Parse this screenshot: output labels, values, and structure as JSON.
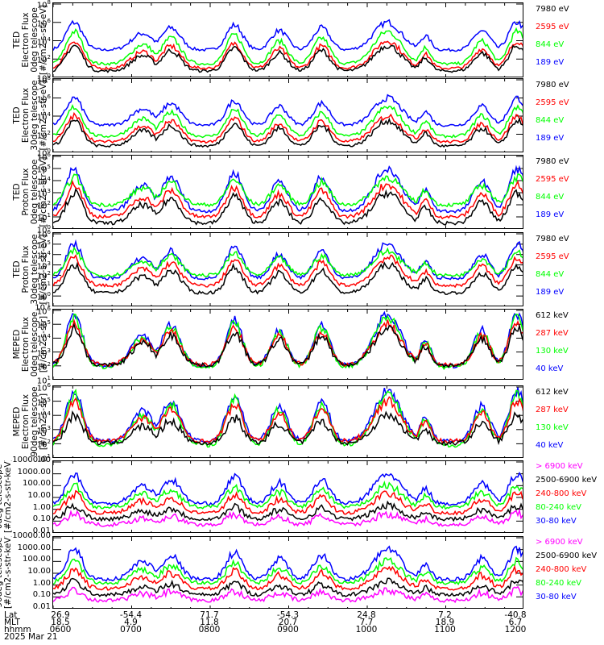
{
  "colors": {
    "black": "#000000",
    "red": "#ff0000",
    "green": "#00ff00",
    "blue": "#0000ff",
    "magenta": "#ff00ff"
  },
  "chart_data": [
    {
      "type": "line",
      "title": "",
      "ylabel": "TED\nElectron Flux\n0deg telescope\n[#/cm2-s-str-eV]",
      "yscale": "log",
      "ylim": [
        1,
        100000000
      ],
      "yticks": [
        {
          "base": "10",
          "exp": "8"
        },
        {
          "base": "10",
          "exp": "6"
        },
        {
          "base": "10",
          "exp": "4"
        },
        {
          "base": "10",
          "exp": "2"
        },
        {
          "base": "10",
          "exp": "0"
        }
      ],
      "legend": [
        {
          "label": "7980 eV",
          "color": "#000000"
        },
        {
          "label": "2595 eV",
          "color": "#ff0000"
        },
        {
          "label": "844 eV",
          "color": "#00ff00"
        },
        {
          "label": "189 eV",
          "color": "#0000ff"
        }
      ],
      "series": [
        {
          "name": "189 eV",
          "base": 1000,
          "peak": 1000000
        },
        {
          "name": "844 eV",
          "base": 30,
          "peak": 100000
        },
        {
          "name": "2595 eV",
          "base": 10,
          "peak": 10000
        },
        {
          "name": "7980 eV",
          "base": 5,
          "peak": 3000
        }
      ]
    },
    {
      "type": "line",
      "title": "",
      "ylabel": "TED\nElectron Flux\n30deg telescope\n[#/cm2-s-str-eV]",
      "yscale": "log",
      "ylim": [
        1,
        100000000
      ],
      "yticks": [
        {
          "base": "10",
          "exp": "8"
        },
        {
          "base": "10",
          "exp": "6"
        },
        {
          "base": "10",
          "exp": "4"
        },
        {
          "base": "10",
          "exp": "2"
        },
        {
          "base": "10",
          "exp": "0"
        }
      ],
      "legend": [
        {
          "label": "7980 eV",
          "color": "#000000"
        },
        {
          "label": "2595 eV",
          "color": "#ff0000"
        },
        {
          "label": "844 eV",
          "color": "#00ff00"
        },
        {
          "label": "189 eV",
          "color": "#0000ff"
        }
      ],
      "series": [
        {
          "name": "189 eV",
          "base": 1000,
          "peak": 1000000
        },
        {
          "name": "844 eV",
          "base": 60,
          "peak": 100000
        },
        {
          "name": "2595 eV",
          "base": 15,
          "peak": 10000
        },
        {
          "name": "7980 eV",
          "base": 5,
          "peak": 3000
        }
      ]
    },
    {
      "type": "line",
      "title": "",
      "ylabel": "TED\nProton Flux\n0deg telescope\n[#/cm2-s-str-eV]",
      "yscale": "log",
      "ylim": [
        1,
        1000000
      ],
      "yticks": [
        {
          "base": "10",
          "exp": "6"
        },
        {
          "base": "10",
          "exp": "5"
        },
        {
          "base": "10",
          "exp": "4"
        },
        {
          "base": "10",
          "exp": "3"
        },
        {
          "base": "10",
          "exp": "2"
        },
        {
          "base": "10",
          "exp": "1"
        },
        {
          "base": "10",
          "exp": "0"
        }
      ],
      "legend": [
        {
          "label": "7980 eV",
          "color": "#000000"
        },
        {
          "label": "2595 eV",
          "color": "#ff0000"
        },
        {
          "label": "844 eV",
          "color": "#00ff00"
        },
        {
          "label": "189 eV",
          "color": "#0000ff"
        }
      ],
      "series": [
        {
          "name": "189 eV",
          "base": 30,
          "peak": 100000
        },
        {
          "name": "844 eV",
          "base": 100,
          "peak": 20000
        },
        {
          "name": "2595 eV",
          "base": 10,
          "peak": 5000
        },
        {
          "name": "7980 eV",
          "base": 3,
          "peak": 1000
        }
      ]
    },
    {
      "type": "line",
      "title": "",
      "ylabel": "TED\nProton Flux\n30deg telescope\n[#/cm2-s-str-eV]",
      "yscale": "log",
      "ylim": [
        0.1,
        1000000
      ],
      "yticks": [
        {
          "base": "10",
          "exp": "6"
        },
        {
          "base": "10",
          "exp": "5"
        },
        {
          "base": "10",
          "exp": "4"
        },
        {
          "base": "10",
          "exp": "3"
        },
        {
          "base": "10",
          "exp": "2"
        },
        {
          "base": "10",
          "exp": "1"
        },
        {
          "base": "10",
          "exp": "0"
        },
        {
          "base": "10",
          "exp": "-1"
        }
      ],
      "legend": [
        {
          "label": "7980 eV",
          "color": "#000000"
        },
        {
          "label": "2595 eV",
          "color": "#ff0000"
        },
        {
          "label": "844 eV",
          "color": "#00ff00"
        },
        {
          "label": "189 eV",
          "color": "#0000ff"
        }
      ],
      "series": [
        {
          "name": "189 eV",
          "base": 50,
          "peak": 100000
        },
        {
          "name": "844 eV",
          "base": 100,
          "peak": 20000
        },
        {
          "name": "2595 eV",
          "base": 10,
          "peak": 5000
        },
        {
          "name": "7980 eV",
          "base": 2,
          "peak": 1000
        }
      ]
    },
    {
      "type": "line",
      "title": "",
      "ylabel": "MEPED\nElectron Flux\n0deg telescope\n[#/cm2-s-str]",
      "yscale": "log",
      "ylim": [
        10,
        1000000
      ],
      "yticks": [
        {
          "base": "10",
          "exp": "6"
        },
        {
          "base": "10",
          "exp": "5"
        },
        {
          "base": "10",
          "exp": "4"
        },
        {
          "base": "10",
          "exp": "3"
        },
        {
          "base": "10",
          "exp": "2"
        },
        {
          "base": "10",
          "exp": "1"
        }
      ],
      "legend": [
        {
          "label": "612 keV",
          "color": "#000000"
        },
        {
          "label": "287 keV",
          "color": "#ff0000"
        },
        {
          "label": "130 keV",
          "color": "#00ff00"
        },
        {
          "label": "40 keV",
          "color": "#0000ff"
        }
      ],
      "series": [
        {
          "name": "40 keV",
          "base": 100,
          "peak": 500000
        },
        {
          "name": "130 keV",
          "base": 80,
          "peak": 300000
        },
        {
          "name": "287 keV",
          "base": 120,
          "peak": 100000
        },
        {
          "name": "612 keV",
          "base": 110,
          "peak": 50000
        }
      ]
    },
    {
      "type": "line",
      "title": "",
      "ylabel": "MEPED\nElectron Flux\n90deg telescope\n[#/cm2-s-str]",
      "yscale": "log",
      "ylim": [
        10,
        1000000
      ],
      "yticks": [
        {
          "base": "10",
          "exp": "6"
        },
        {
          "base": "10",
          "exp": "5"
        },
        {
          "base": "10",
          "exp": "4"
        },
        {
          "base": "10",
          "exp": "3"
        },
        {
          "base": "10",
          "exp": "2"
        },
        {
          "base": "10",
          "exp": "1"
        }
      ],
      "legend": [
        {
          "label": "612 keV",
          "color": "#000000"
        },
        {
          "label": "287 keV",
          "color": "#ff0000"
        },
        {
          "label": "130 keV",
          "color": "#00ff00"
        },
        {
          "label": "40 keV",
          "color": "#0000ff"
        }
      ],
      "series": [
        {
          "name": "40 keV",
          "base": 150,
          "peak": 500000
        },
        {
          "name": "130 keV",
          "base": 80,
          "peak": 300000
        },
        {
          "name": "287 keV",
          "base": 150,
          "peak": 100000
        },
        {
          "name": "612 keV",
          "base": 110,
          "peak": 10000
        }
      ]
    },
    {
      "type": "line",
      "title": "",
      "ylabel": "0deg telescope\n[#/cm2-s-str-keV]",
      "yscale": "log",
      "ylim": [
        0.01,
        10000
      ],
      "yticks": [
        {
          "text": "10000.00"
        },
        {
          "text": "1000.00"
        },
        {
          "text": "100.00"
        },
        {
          "text": "10.00"
        },
        {
          "text": "1.00"
        },
        {
          "text": "0.10"
        },
        {
          "text": "0.01"
        }
      ],
      "legend": [
        {
          "label": "> 6900 keV",
          "color": "#ff00ff"
        },
        {
          "label": "2500-6900 keV",
          "color": "#000000"
        },
        {
          "label": "240-800 keV",
          "color": "#ff0000"
        },
        {
          "label": "80-240 keV",
          "color": "#00ff00"
        },
        {
          "label": "30-80 keV",
          "color": "#0000ff"
        }
      ],
      "series": [
        {
          "name": "30-80 keV",
          "base": 3,
          "peak": 1000
        },
        {
          "name": "80-240 keV",
          "base": 1.5,
          "peak": 100
        },
        {
          "name": "240-800 keV",
          "base": 0.5,
          "peak": 20
        },
        {
          "name": "2500-6900 keV",
          "base": 0.15,
          "peak": 2
        },
        {
          "name": "> 6900 keV",
          "base": 0.05,
          "peak": 0.4
        }
      ]
    },
    {
      "type": "line",
      "title": "",
      "ylabel": "90deg telescope\n[#/cm2-s-str-keV]",
      "yscale": "log",
      "ylim": [
        0.01,
        10000
      ],
      "yticks": [
        {
          "text": "10000.00"
        },
        {
          "text": "1000.00"
        },
        {
          "text": "100.00"
        },
        {
          "text": "10.00"
        },
        {
          "text": "1.00"
        },
        {
          "text": "0.10"
        },
        {
          "text": "0.01"
        }
      ],
      "legend": [
        {
          "label": "> 6900 keV",
          "color": "#ff00ff"
        },
        {
          "label": "2500-6900 keV",
          "color": "#000000"
        },
        {
          "label": "240-800 keV",
          "color": "#ff0000"
        },
        {
          "label": "80-240 keV",
          "color": "#00ff00"
        },
        {
          "label": "30-80 keV",
          "color": "#0000ff"
        }
      ],
      "series": [
        {
          "name": "30-80 keV",
          "base": 3,
          "peak": 1000
        },
        {
          "name": "80-240 keV",
          "base": 1.5,
          "peak": 100
        },
        {
          "name": "240-800 keV",
          "base": 0.5,
          "peak": 20
        },
        {
          "name": "2500-6900 keV",
          "base": 0.15,
          "peak": 2
        },
        {
          "name": "> 6900 keV",
          "base": 0.05,
          "peak": 0.4
        }
      ]
    }
  ],
  "xaxis": {
    "row_labels": [
      "Lat",
      "MLT",
      "hhmm"
    ],
    "date": "2025 Mar 21",
    "columns": [
      {
        "lat": "26.9",
        "mlt": "18.5",
        "hhmm": "0600"
      },
      {
        "lat": "-54.4",
        "mlt": "4.9",
        "hhmm": "0700"
      },
      {
        "lat": "71.7",
        "mlt": "11.8",
        "hhmm": "0800"
      },
      {
        "lat": "-54.3",
        "mlt": "20.7",
        "hhmm": "0900"
      },
      {
        "lat": "24.8",
        "mlt": "7.7",
        "hhmm": "1000"
      },
      {
        "lat": "7.2",
        "mlt": "18.9",
        "hhmm": "1100"
      },
      {
        "lat": "-40.8",
        "mlt": "6.7",
        "hhmm": "1200"
      }
    ],
    "range_hours": [
      6,
      12
    ]
  }
}
